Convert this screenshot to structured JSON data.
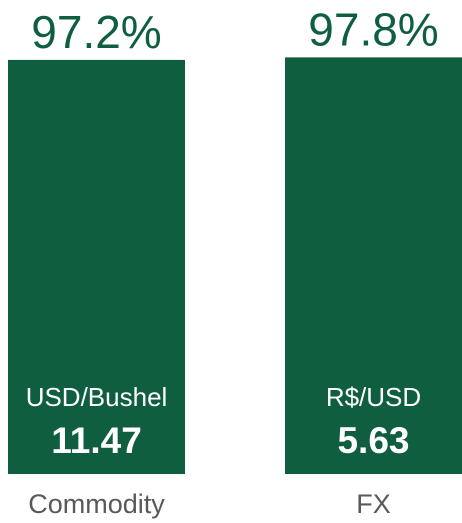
{
  "chart_data": {
    "type": "bar",
    "categories": [
      "Commodity",
      "FX"
    ],
    "values": [
      97.2,
      97.8
    ],
    "value_labels": [
      "97.2%",
      "97.8%"
    ],
    "units": [
      "USD/Bushel",
      "R$/USD"
    ],
    "prices": [
      11.47,
      5.63
    ],
    "color": "#105e40",
    "ylim": [
      0,
      100
    ]
  }
}
